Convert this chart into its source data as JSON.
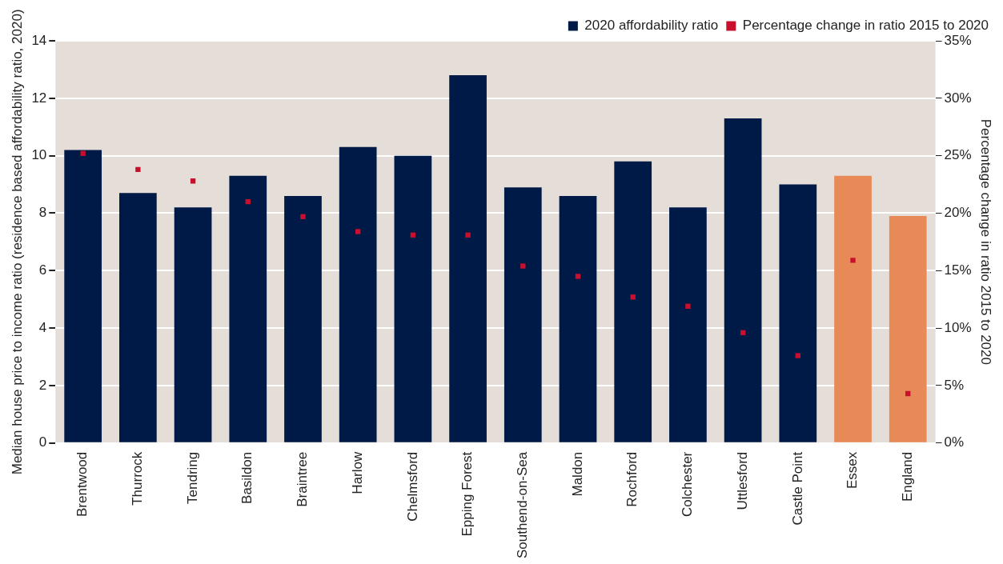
{
  "chart_data": {
    "type": "bar",
    "categories": [
      "Brentwood",
      "Thurrock",
      "Tendring",
      "Basildon",
      "Braintree",
      "Harlow",
      "Chelmsford",
      "Epping Forest",
      "Southend-on-Sea",
      "Maldon",
      "Rochford",
      "Colchester",
      "Uttlesford",
      "Castle Point",
      "Essex",
      "England"
    ],
    "ylabel": "Median house price to income ratio (residence based affordability ratio, 2020)",
    "y2label": "Percentage change in ratio 2015 to 2020",
    "series": [
      {
        "name": "2020 affordability ratio",
        "color": "#001a47",
        "colors": [
          "#001a47",
          "#001a47",
          "#001a47",
          "#001a47",
          "#001a47",
          "#001a47",
          "#001a47",
          "#001a47",
          "#001a47",
          "#001a47",
          "#001a47",
          "#001a47",
          "#001a47",
          "#001a47",
          "#e88a58",
          "#e88a58"
        ],
        "values": [
          10.2,
          8.7,
          8.2,
          9.3,
          8.6,
          10.3,
          10.0,
          12.8,
          8.9,
          8.6,
          9.8,
          8.2,
          11.3,
          9.0,
          9.3,
          7.9
        ]
      },
      {
        "name": "Percentage change in ratio 2015 to 2020",
        "type": "scatter",
        "axis": "y2",
        "color": "#c8102e",
        "marker": "square",
        "x": [
          "Brentwood",
          "Thurrock",
          "Tendring",
          "Basildon",
          "Braintree",
          "Harlow",
          "Chelmsford",
          "Epping Forest",
          "Southend-on-Sea",
          "Maldon",
          "Rochford",
          "Colchester",
          "Uttlesford",
          "Castle Point",
          "Essex",
          "England"
        ],
        "values": [
          25.2,
          23.8,
          22.8,
          21.0,
          19.7,
          18.4,
          18.1,
          18.1,
          15.4,
          14.5,
          12.7,
          11.9,
          9.6,
          7.6,
          15.9,
          4.3
        ]
      }
    ],
    "ylim": [
      0,
      14
    ],
    "yticks": [
      0,
      2,
      4,
      6,
      8,
      10,
      12,
      14
    ],
    "y2lim": [
      0,
      35
    ],
    "y2ticks": [
      {
        "value": 0,
        "label": "0%"
      },
      {
        "value": 5,
        "label": "5%"
      },
      {
        "value": 10,
        "label": "10%"
      },
      {
        "value": 15,
        "label": "15%"
      },
      {
        "value": 20,
        "label": "20%"
      },
      {
        "value": 25,
        "label": "25%"
      },
      {
        "value": 30,
        "label": "30%"
      },
      {
        "value": 35,
        "label": "35%"
      }
    ],
    "grid": "y",
    "legend": "top right"
  }
}
